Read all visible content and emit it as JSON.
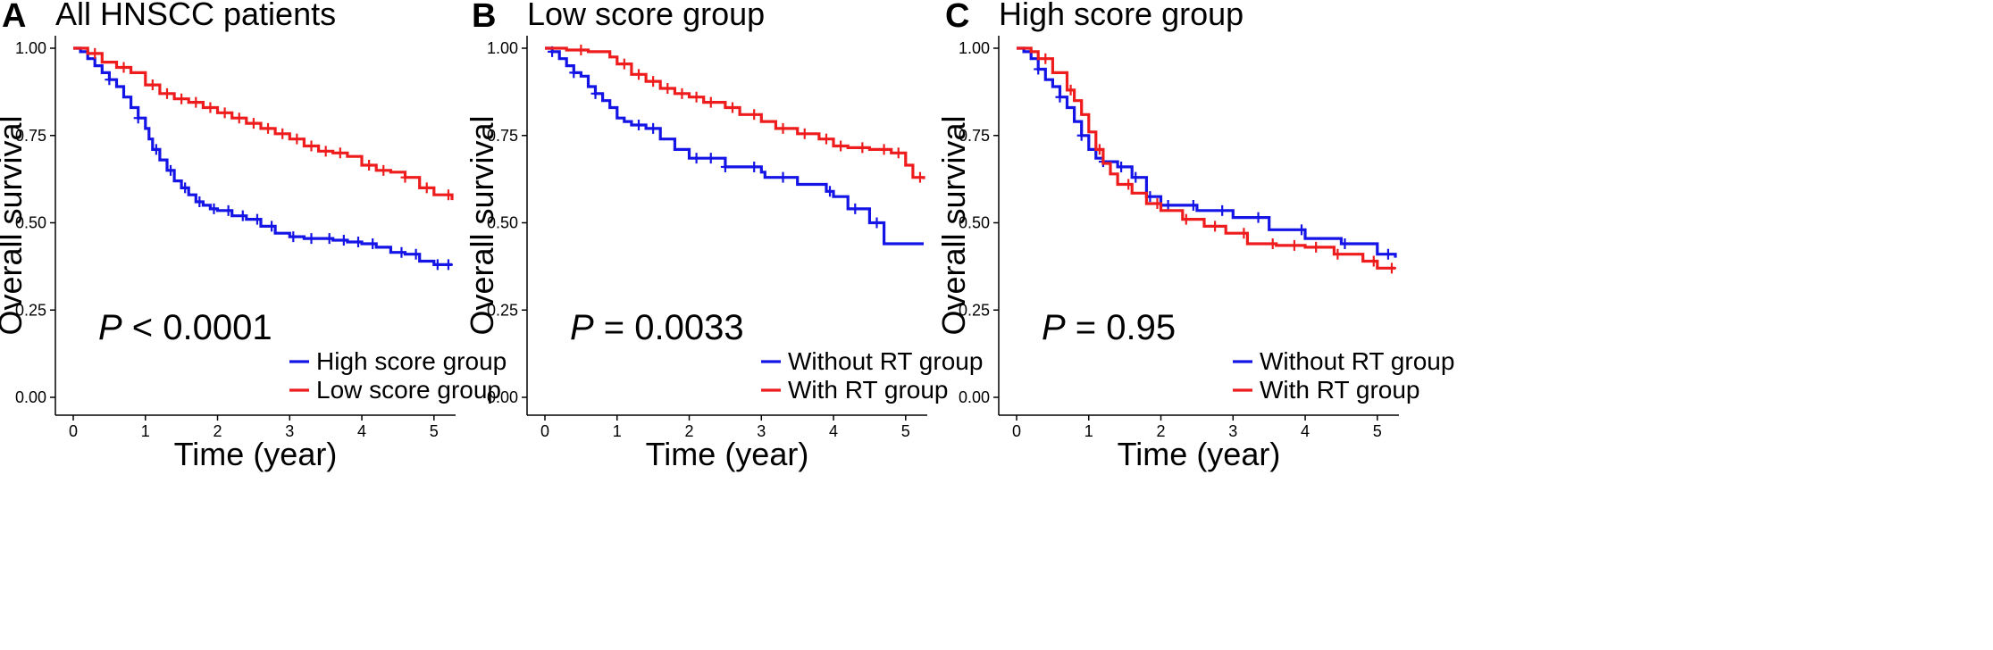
{
  "colors": {
    "blue": "#1414e6",
    "red": "#ee1c1c"
  },
  "chart_data": [
    {
      "type": "line",
      "panel_label": "A",
      "title": "All HNSCC patients",
      "xlabel": "Time (year)",
      "ylabel": "Overall survival",
      "xlim": [
        0,
        5.25
      ],
      "ylim": [
        0,
        1.0
      ],
      "x_ticks": [
        "0",
        "1",
        "2",
        "3",
        "4",
        "5"
      ],
      "y_ticks": [
        "0.00",
        "0.25",
        "0.50",
        "0.75",
        "1.00"
      ],
      "pvalue": {
        "symbol": "P",
        "text": " < 0.0001"
      },
      "legend_position": "bottom-right",
      "series": [
        {
          "name": "High score group",
          "color": "#1414e6",
          "x": [
            0,
            0.1,
            0.2,
            0.3,
            0.4,
            0.5,
            0.6,
            0.7,
            0.8,
            0.9,
            1.0,
            1.05,
            1.1,
            1.2,
            1.3,
            1.4,
            1.5,
            1.6,
            1.7,
            1.8,
            1.9,
            2.0,
            2.2,
            2.4,
            2.6,
            2.8,
            3.0,
            3.2,
            3.4,
            3.6,
            3.8,
            4.0,
            4.2,
            4.4,
            4.6,
            4.8,
            5.0,
            5.25
          ],
          "y": [
            1.0,
            0.99,
            0.97,
            0.95,
            0.93,
            0.91,
            0.89,
            0.86,
            0.83,
            0.8,
            0.77,
            0.74,
            0.71,
            0.68,
            0.65,
            0.62,
            0.6,
            0.58,
            0.56,
            0.55,
            0.54,
            0.535,
            0.52,
            0.51,
            0.49,
            0.47,
            0.46,
            0.455,
            0.455,
            0.45,
            0.445,
            0.44,
            0.43,
            0.415,
            0.41,
            0.39,
            0.38,
            0.38
          ],
          "censor_x": [
            0.5,
            0.9,
            1.15,
            1.35,
            1.55,
            1.75,
            1.95,
            2.15,
            2.35,
            2.55,
            2.75,
            3.05,
            3.3,
            3.55,
            3.75,
            3.95,
            4.15,
            4.55,
            4.75,
            5.05,
            5.2
          ]
        },
        {
          "name": "Low score group",
          "color": "#ee1c1c",
          "x": [
            0,
            0.2,
            0.4,
            0.6,
            0.8,
            1.0,
            1.2,
            1.4,
            1.6,
            1.8,
            2.0,
            2.2,
            2.4,
            2.6,
            2.8,
            3.0,
            3.2,
            3.4,
            3.6,
            3.8,
            4.0,
            4.2,
            4.4,
            4.6,
            4.8,
            5.0,
            5.25
          ],
          "y": [
            1.0,
            0.985,
            0.96,
            0.945,
            0.93,
            0.895,
            0.87,
            0.855,
            0.845,
            0.83,
            0.815,
            0.8,
            0.785,
            0.77,
            0.755,
            0.74,
            0.72,
            0.705,
            0.7,
            0.69,
            0.665,
            0.65,
            0.645,
            0.63,
            0.6,
            0.58,
            0.565
          ],
          "censor_x": [
            0.3,
            0.7,
            1.1,
            1.3,
            1.5,
            1.7,
            1.9,
            2.1,
            2.3,
            2.5,
            2.7,
            2.9,
            3.1,
            3.3,
            3.5,
            3.7,
            4.1,
            4.3,
            4.6,
            4.9,
            5.2
          ]
        }
      ]
    },
    {
      "type": "line",
      "panel_label": "B",
      "title": "Low score group",
      "xlabel": "Time (year)",
      "ylabel": "Overall survival",
      "xlim": [
        0,
        5.25
      ],
      "ylim": [
        0,
        1.0
      ],
      "x_ticks": [
        "0",
        "1",
        "2",
        "3",
        "4",
        "5"
      ],
      "y_ticks": [
        "0.00",
        "0.25",
        "0.50",
        "0.75",
        "1.00"
      ],
      "pvalue": {
        "symbol": "P",
        "text": " = 0.0033"
      },
      "legend_position": "bottom-right",
      "series": [
        {
          "name": "Without RT group",
          "color": "#1414e6",
          "x": [
            0,
            0.1,
            0.2,
            0.3,
            0.4,
            0.5,
            0.6,
            0.7,
            0.8,
            0.9,
            1.0,
            1.1,
            1.2,
            1.4,
            1.6,
            1.8,
            2.0,
            2.5,
            3.0,
            3.05,
            3.5,
            3.9,
            4.0,
            4.2,
            4.5,
            4.7,
            5.25
          ],
          "y": [
            1.0,
            0.99,
            0.97,
            0.95,
            0.93,
            0.92,
            0.89,
            0.87,
            0.85,
            0.83,
            0.8,
            0.79,
            0.78,
            0.77,
            0.74,
            0.71,
            0.685,
            0.66,
            0.645,
            0.63,
            0.61,
            0.59,
            0.575,
            0.54,
            0.5,
            0.44,
            0.44
          ],
          "censor_x": [
            0.1,
            0.4,
            0.7,
            1.3,
            1.5,
            2.1,
            2.3,
            2.5,
            2.9,
            3.3,
            3.95,
            4.3,
            4.6
          ]
        },
        {
          "name": "With RT group",
          "color": "#ee1c1c",
          "x": [
            0,
            0.3,
            0.6,
            0.9,
            1.0,
            1.2,
            1.4,
            1.6,
            1.8,
            2.0,
            2.2,
            2.5,
            2.7,
            3.0,
            3.2,
            3.5,
            3.8,
            4.0,
            4.2,
            4.5,
            4.8,
            5.0,
            5.1,
            5.25
          ],
          "y": [
            1.0,
            0.995,
            0.99,
            0.975,
            0.955,
            0.925,
            0.905,
            0.885,
            0.87,
            0.86,
            0.845,
            0.83,
            0.81,
            0.79,
            0.77,
            0.755,
            0.74,
            0.72,
            0.715,
            0.71,
            0.7,
            0.665,
            0.63,
            0.625
          ],
          "censor_x": [
            0.5,
            1.1,
            1.3,
            1.5,
            1.7,
            1.9,
            2.1,
            2.3,
            2.6,
            2.9,
            3.3,
            3.6,
            3.9,
            4.1,
            4.4,
            4.7,
            4.9,
            5.2
          ]
        }
      ]
    },
    {
      "type": "line",
      "panel_label": "C",
      "title": "High score group",
      "xlabel": "Time (year)",
      "ylabel": "Overall survival",
      "xlim": [
        0,
        5.25
      ],
      "ylim": [
        0,
        1.0
      ],
      "x_ticks": [
        "0",
        "1",
        "2",
        "3",
        "4",
        "5"
      ],
      "y_ticks": [
        "0.00",
        "0.25",
        "0.50",
        "0.75",
        "1.00"
      ],
      "pvalue": {
        "symbol": "P",
        "text": " = 0.95"
      },
      "legend_position": "bottom-right",
      "series": [
        {
          "name": "Without RT group",
          "color": "#1414e6",
          "x": [
            0,
            0.1,
            0.2,
            0.3,
            0.4,
            0.5,
            0.6,
            0.7,
            0.8,
            0.9,
            1.0,
            1.1,
            1.2,
            1.4,
            1.6,
            1.8,
            2.0,
            2.5,
            3.0,
            3.5,
            4.0,
            4.5,
            5.0,
            5.25
          ],
          "y": [
            1.0,
            0.99,
            0.97,
            0.94,
            0.91,
            0.89,
            0.86,
            0.83,
            0.79,
            0.75,
            0.71,
            0.685,
            0.675,
            0.66,
            0.63,
            0.575,
            0.55,
            0.535,
            0.515,
            0.48,
            0.455,
            0.44,
            0.41,
            0.4
          ],
          "censor_x": [
            0.3,
            0.6,
            0.9,
            1.2,
            1.45,
            1.65,
            1.85,
            2.1,
            2.45,
            2.85,
            3.35,
            3.95,
            4.55,
            5.15
          ]
        },
        {
          "name": "With RT group",
          "color": "#ee1c1c",
          "x": [
            0,
            0.1,
            0.2,
            0.3,
            0.5,
            0.7,
            0.8,
            0.9,
            1.0,
            1.1,
            1.2,
            1.3,
            1.4,
            1.6,
            1.8,
            2.0,
            2.3,
            2.6,
            2.9,
            3.2,
            3.6,
            4.0,
            4.4,
            4.8,
            5.0,
            5.25
          ],
          "y": [
            1.0,
            1.0,
            0.99,
            0.97,
            0.93,
            0.88,
            0.85,
            0.81,
            0.76,
            0.71,
            0.67,
            0.64,
            0.61,
            0.585,
            0.555,
            0.535,
            0.51,
            0.49,
            0.47,
            0.44,
            0.435,
            0.43,
            0.41,
            0.39,
            0.37,
            0.37
          ],
          "censor_x": [
            0.4,
            0.75,
            1.15,
            1.55,
            1.95,
            2.35,
            2.75,
            3.15,
            3.55,
            3.85,
            4.15,
            4.45,
            4.95,
            5.2
          ]
        }
      ]
    }
  ]
}
